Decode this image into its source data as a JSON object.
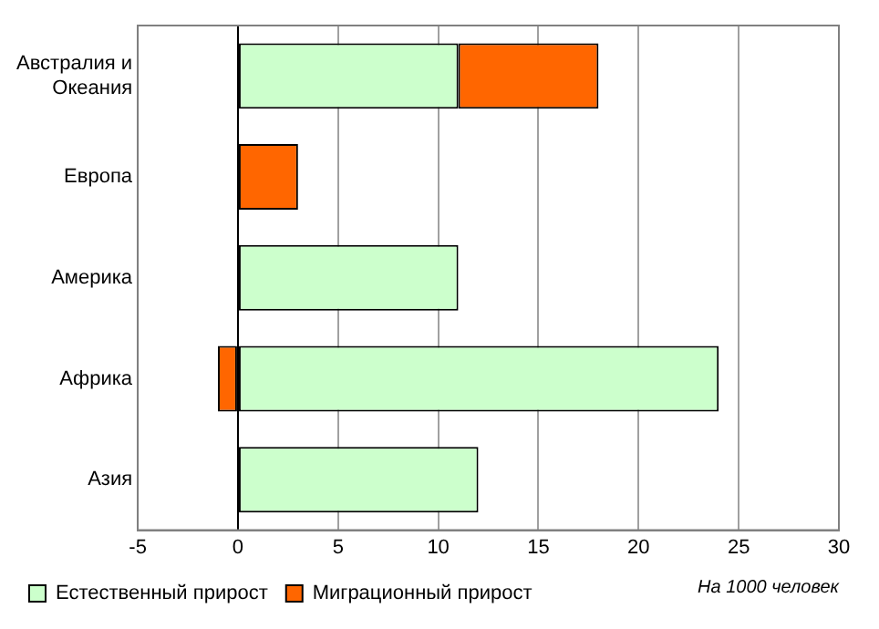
{
  "chart_data": {
    "type": "bar",
    "orientation": "horizontal",
    "stacked": true,
    "categories": [
      "Австралия и Океания",
      "Европа",
      "Америка",
      "Африка",
      "Азия"
    ],
    "series": [
      {
        "name": "Естественный прирост",
        "color": "#ccffcc",
        "values": [
          11,
          0,
          11,
          24,
          12
        ]
      },
      {
        "name": "Миграционный прирост",
        "color": "#ff6600",
        "values": [
          7,
          3,
          0,
          -1,
          0
        ]
      }
    ],
    "xlim": [
      -5,
      30
    ],
    "xticks": [
      -5,
      0,
      5,
      10,
      15,
      20,
      25,
      30
    ],
    "grid": "x",
    "legend": "bottom left",
    "annotations": [
      "На 1000 человек"
    ]
  }
}
